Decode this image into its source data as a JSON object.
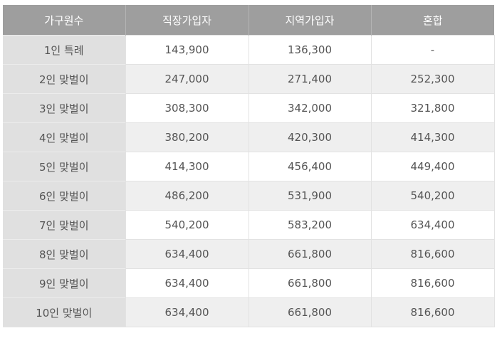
{
  "table": {
    "headers": [
      "가구원수",
      "직장가입자",
      "지역가입자",
      "혼합"
    ],
    "rows": [
      [
        "1인 특례",
        "143,900",
        "136,300",
        "-"
      ],
      [
        "2인 맞벌이",
        "247,000",
        "271,400",
        "252,300"
      ],
      [
        "3인 맞벌이",
        "308,300",
        "342,000",
        "321,800"
      ],
      [
        "4인 맞벌이",
        "380,200",
        "420,300",
        "414,300"
      ],
      [
        "5인 맞벌이",
        "414,300",
        "456,400",
        "449,400"
      ],
      [
        "6인 맞벌이",
        "486,200",
        "531,900",
        "540,200"
      ],
      [
        "7인 맞벌이",
        "540,200",
        "583,200",
        "634,400"
      ],
      [
        "8인 맞벌이",
        "634,400",
        "661,800",
        "816,600"
      ],
      [
        "9인 맞벌이",
        "634,400",
        "661,800",
        "816,600"
      ],
      [
        "10인 맞벌이",
        "634,400",
        "661,800",
        "816,600"
      ]
    ]
  },
  "colors": {
    "header_bg": "#9e9e9e",
    "header_text": "#ffffff",
    "rowhead_bg": "#e0e0e0",
    "stripe_bg": "#efefef",
    "text": "#555555"
  }
}
